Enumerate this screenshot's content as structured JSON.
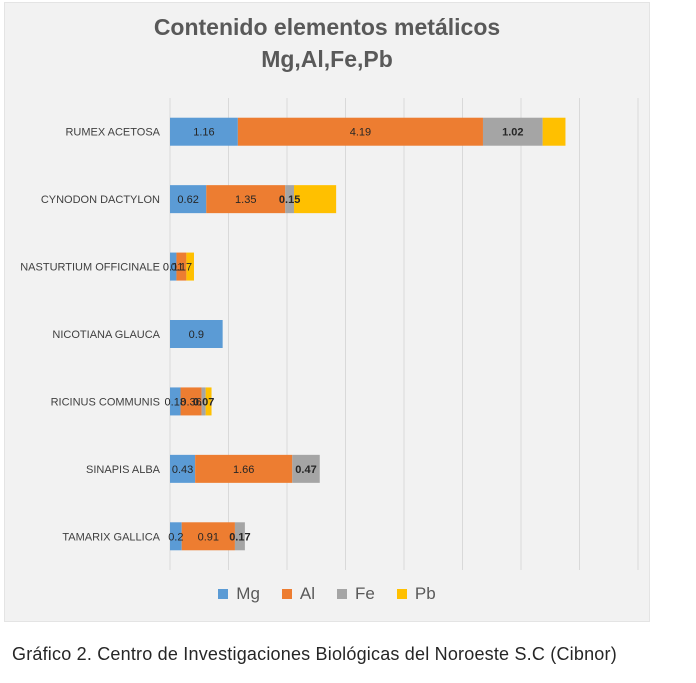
{
  "chart_data": {
    "type": "bar",
    "orientation": "horizontal",
    "stacked": true,
    "title": "Contenido elementos metálicos",
    "subtitle": "Mg,Al,Fe,Pb",
    "categories": [
      "RUMEX ACETOSA",
      "CYNODON DACTYLON",
      "NASTURTIUM OFFICINALE",
      "NICOTIANA GLAUCA",
      "RICINUS COMMUNIS",
      "SINAPIS ALBA",
      "TAMARIX GALLICA"
    ],
    "series": [
      {
        "name": "Mg",
        "color": "#5b9bd5",
        "values": [
          1.16,
          0.62,
          0.11,
          0.9,
          0.18,
          0.43,
          0.2
        ]
      },
      {
        "name": "Al",
        "color": "#ed7d31",
        "values": [
          4.19,
          1.35,
          0.17,
          0,
          0.36,
          1.66,
          0.91
        ]
      },
      {
        "name": "Fe",
        "color": "#a5a5a5",
        "values": [
          1.02,
          0.15,
          0,
          0,
          0.07,
          0.47,
          0.17
        ]
      },
      {
        "name": "Pb",
        "color": "#ffc000",
        "values": [
          0.39,
          0.72,
          0.13,
          0,
          0.1,
          0,
          0
        ]
      }
    ],
    "xlim": [
      0,
      8
    ],
    "grid": true,
    "legend_position": "bottom",
    "data_labels": [
      [
        "1.16",
        "4.19",
        "1.02",
        ""
      ],
      [
        "0.62",
        "1.35",
        "0.15",
        ""
      ],
      [
        "0.11",
        "0.17",
        "",
        ""
      ],
      [
        "0.9",
        "",
        "",
        ""
      ],
      [
        "0.18",
        "0.36",
        "0.07",
        ""
      ],
      [
        "0.43",
        "1.66",
        "0.47",
        ""
      ],
      [
        "0.2",
        "0.91",
        "0.17",
        ""
      ]
    ]
  },
  "caption": "Gráfico 2. Centro de Investigaciones Biológicas del Noroeste S.C (Cibnor)"
}
